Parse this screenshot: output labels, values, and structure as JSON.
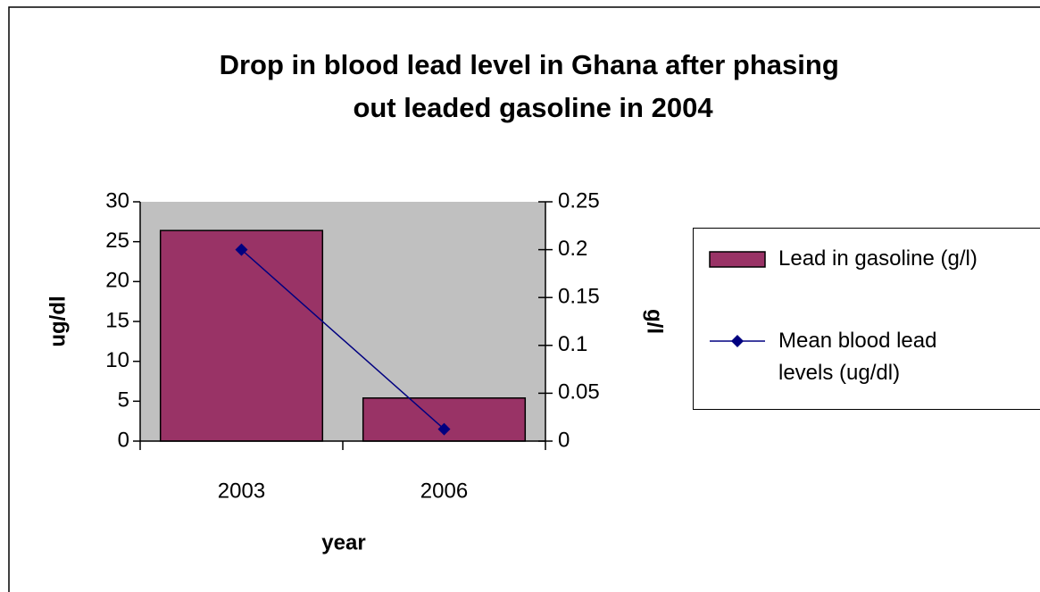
{
  "chart_data": {
    "type": "bar-line",
    "title": "Drop in blood lead level in Ghana after phasing out leaded gasoline in 2004",
    "x_label": "year",
    "y_label": "ug/dl",
    "y2_label": "g/l",
    "categories": [
      "2003",
      "2006"
    ],
    "series": [
      {
        "name": "Lead in gasoline (g/l)",
        "type": "bar",
        "axis": "y2",
        "color": "#993366",
        "values": [
          0.22,
          0.045
        ]
      },
      {
        "name": "Mean blood lead levels (ug/dl)",
        "type": "line",
        "axis": "y",
        "color": "#000080",
        "values": [
          24,
          1.5
        ]
      }
    ],
    "ylim": [
      0,
      30
    ],
    "yticks": [
      0,
      5,
      10,
      15,
      20,
      25,
      30
    ],
    "y2lim": [
      0,
      0.25
    ],
    "y2ticks": [
      0,
      0.05,
      0.1,
      0.15,
      0.2,
      0.25
    ],
    "plot_background": "#c0c0c0"
  }
}
